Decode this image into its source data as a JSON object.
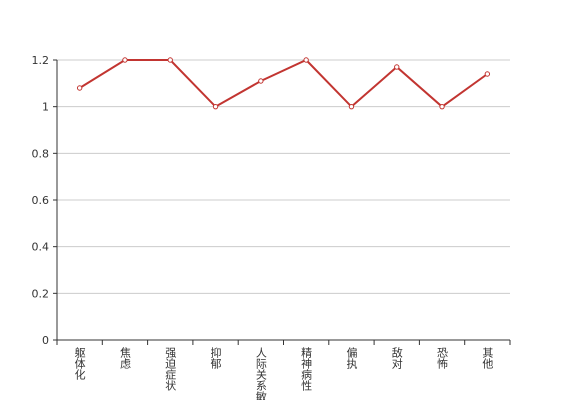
{
  "chart_data": {
    "type": "line",
    "categories": [
      "躯体化",
      "焦虑",
      "强迫症状",
      "抑郁",
      "人际关系敏感",
      "精神病性",
      "偏执",
      "敌对",
      "恐怖",
      "其他"
    ],
    "values": [
      1.08,
      1.2,
      1.2,
      1.0,
      1.11,
      1.2,
      1.0,
      1.17,
      1.0,
      1.14
    ],
    "color": "#c23531",
    "ylim": [
      0,
      1.2
    ],
    "yticks": [
      0,
      0.2,
      0.4,
      0.6,
      0.8,
      1,
      1.2
    ],
    "grid": true
  }
}
